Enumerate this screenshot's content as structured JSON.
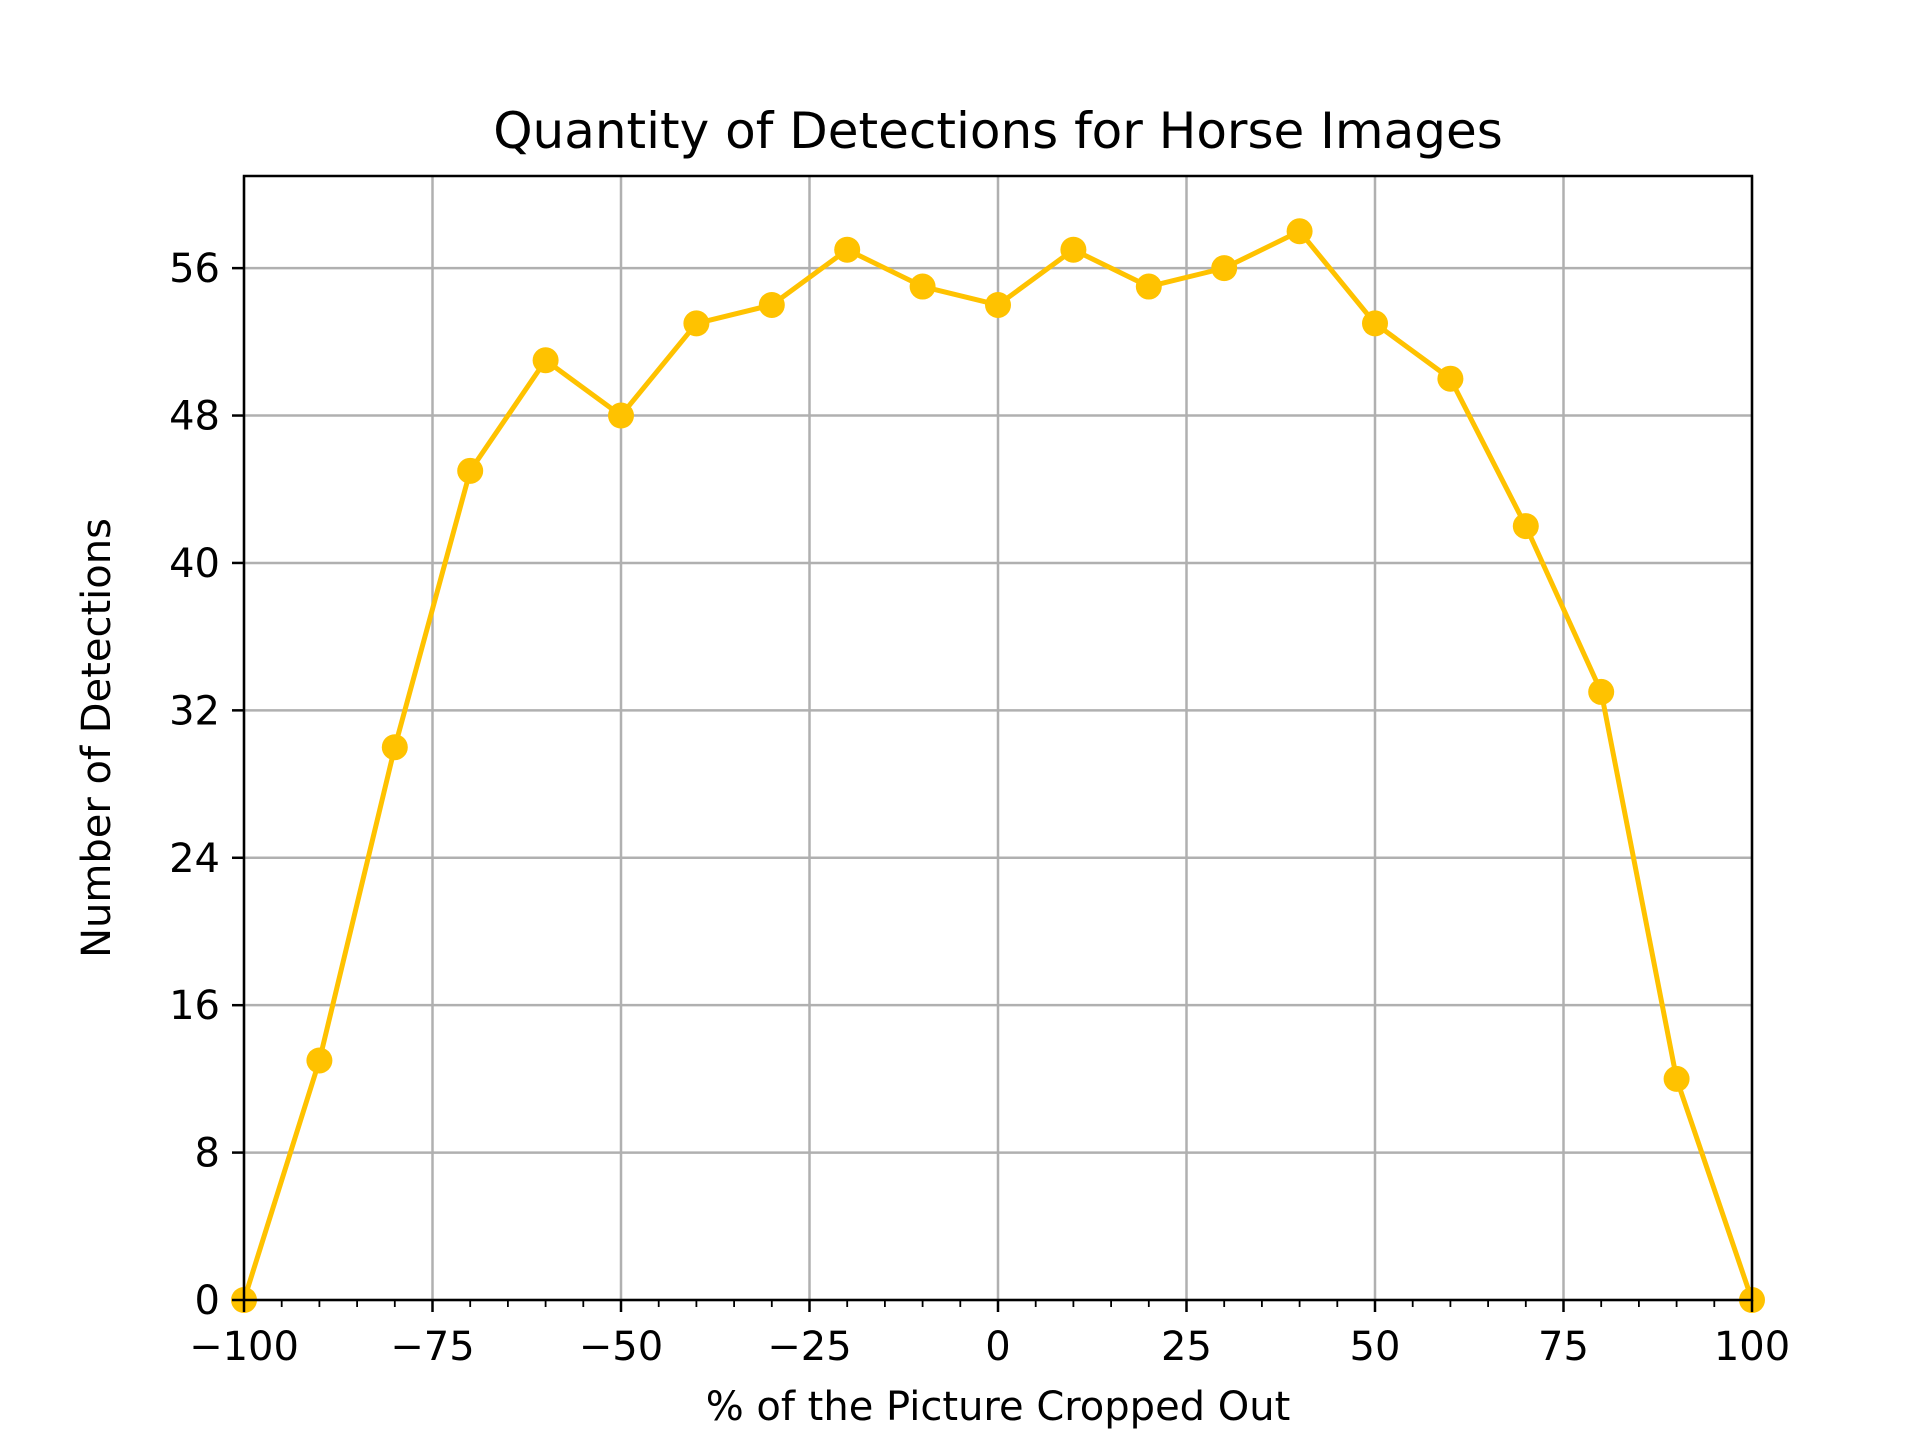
{
  "chart_data": {
    "type": "line",
    "title": "Quantity of Detections for Horse Images",
    "xlabel": "% of the Picture Cropped Out",
    "ylabel": "Number of Detections",
    "xlim": [
      -100,
      100
    ],
    "ylim": [
      0,
      61
    ],
    "xticks": [
      -100,
      -75,
      -50,
      -25,
      0,
      25,
      50,
      75,
      100
    ],
    "xtick_labels": [
      "−100",
      "−75",
      "−50",
      "−25",
      "0",
      "25",
      "50",
      "75",
      "100"
    ],
    "yticks": [
      0,
      8,
      16,
      24,
      32,
      40,
      48,
      56
    ],
    "ytick_labels": [
      "0",
      "8",
      "16",
      "24",
      "32",
      "40",
      "48",
      "56"
    ],
    "grid": true,
    "color": "#FFC200",
    "series": [
      {
        "x": [
          -100,
          -90,
          -80,
          -70,
          -60,
          -50,
          -40,
          -30,
          -20,
          -10,
          0,
          10,
          20,
          30,
          40,
          50,
          60,
          70,
          80,
          90,
          100
        ],
        "values": [
          0,
          13,
          30,
          45,
          51,
          48,
          53,
          54,
          57,
          55,
          54,
          57,
          55,
          56,
          58,
          53,
          50,
          42,
          33,
          12,
          0
        ]
      }
    ]
  }
}
